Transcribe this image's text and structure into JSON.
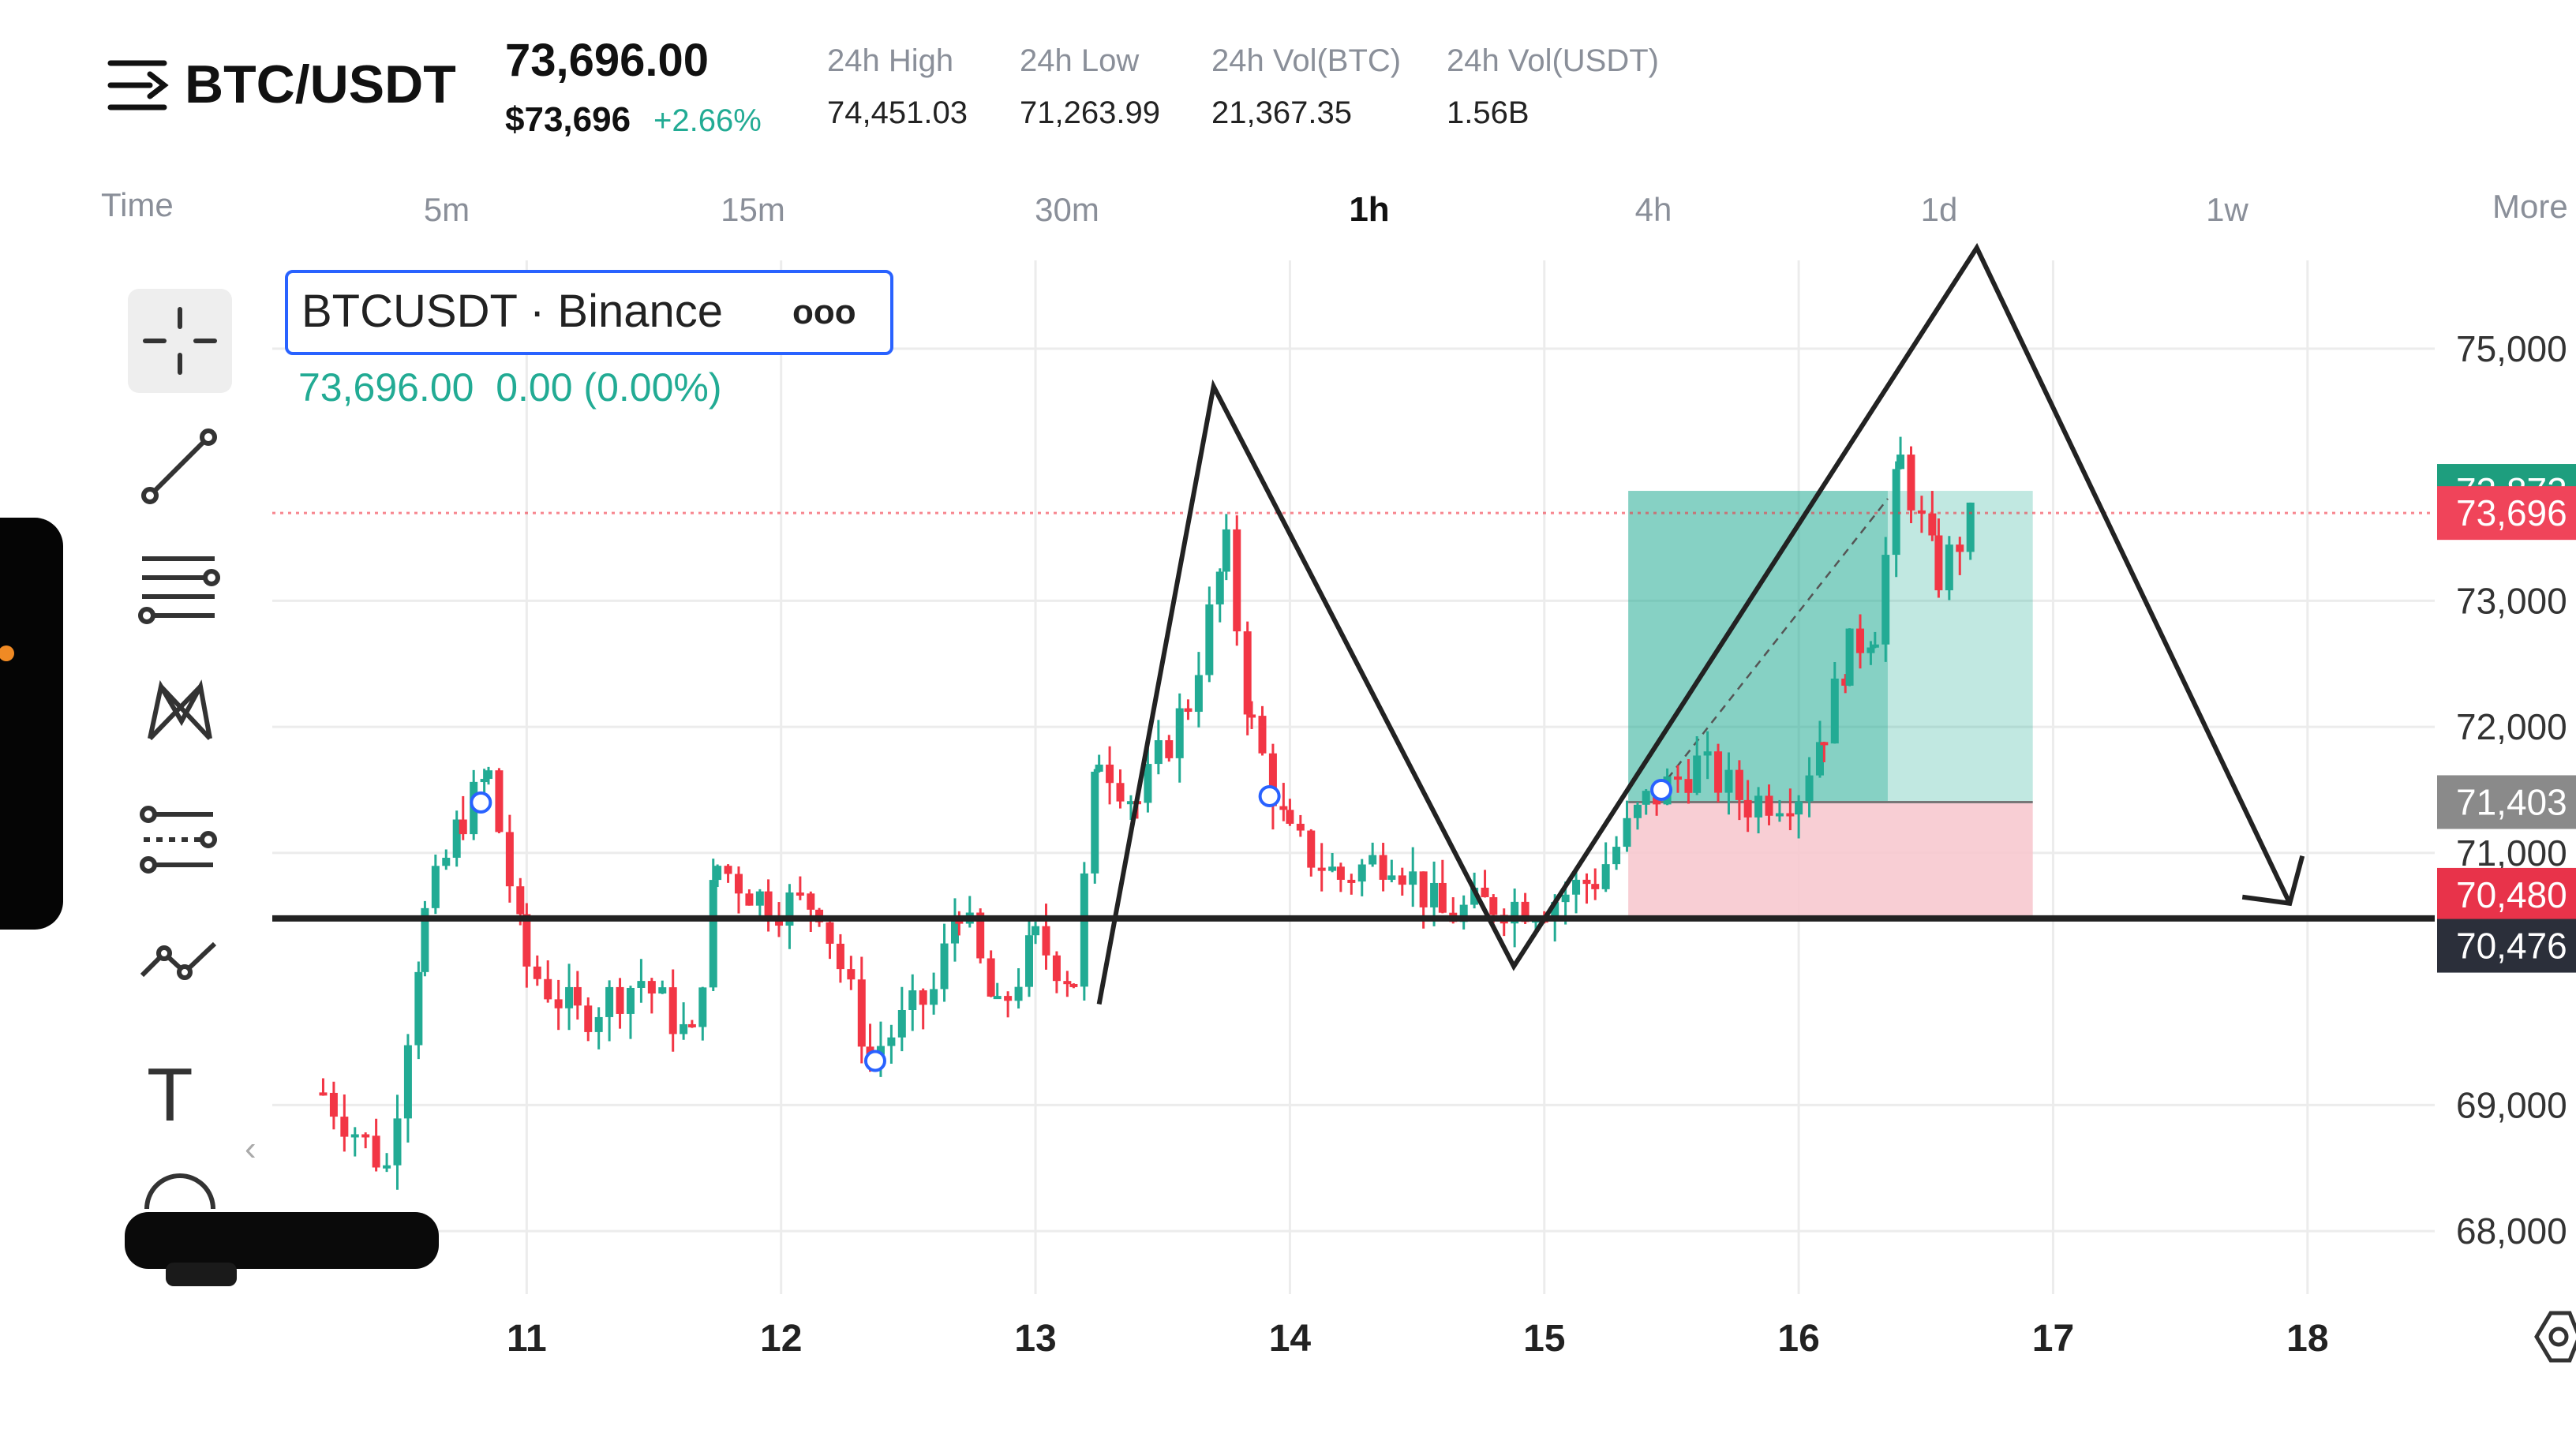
{
  "header": {
    "pair": "BTC/USDT",
    "price": "73,696.00",
    "price_usd": "$73,696",
    "change_pct": "+2.66%",
    "stats": [
      {
        "label": "24h High",
        "value": "74,451.03"
      },
      {
        "label": "24h Low",
        "value": "71,263.99"
      },
      {
        "label": "24h Vol(BTC)",
        "value": "21,367.35"
      },
      {
        "label": "24h Vol(USDT)",
        "value": "1.56B"
      }
    ]
  },
  "timeframes": {
    "time_label": "Time",
    "items": [
      "5m",
      "15m",
      "30m",
      "1h",
      "4h",
      "1d",
      "1w"
    ],
    "selected": "1h",
    "more_label": "More"
  },
  "legend": {
    "symbol": "BTCUSDT · Binance",
    "menu_glyph": "ooo",
    "values": "73,696.00  0.00 (0.00%)"
  },
  "toolbar": {
    "tools": [
      "crosshair",
      "trend-line",
      "horizontal-lines",
      "pattern",
      "fib-channel",
      "prediction",
      "text",
      "emoji"
    ],
    "text_tool_glyph": "T",
    "collapse_glyph": "‹"
  },
  "colors": {
    "up": "#22ab94",
    "down": "#f23645",
    "drawing": "#222222",
    "legend_border": "#2962ff",
    "target_zone": "#22ab94",
    "stop_zone": "#f7c9cf",
    "axis_text": "#333333"
  },
  "price_tags": [
    {
      "value": "73,872",
      "color": "#1e9e7e"
    },
    {
      "value": "73,696",
      "color": "#f0445a"
    },
    {
      "value": "71,403",
      "color": "#8a8a8a"
    },
    {
      "value": "70,480",
      "color": "#e8334a"
    },
    {
      "value": "70,476",
      "color": "#2b2f3a"
    }
  ],
  "chart_data": {
    "type": "candlestick",
    "x_tick_labels": [
      "11",
      "12",
      "13",
      "14",
      "15",
      "16",
      "17",
      "18"
    ],
    "y_tick_labels": [
      "75,000",
      "73,000",
      "72,000",
      "71,000",
      "69,000",
      "68,000"
    ],
    "y_tick_values": [
      75000,
      73000,
      72000,
      71000,
      69000,
      68000
    ],
    "x_range": [
      10.0,
      18.5
    ],
    "y_range": [
      67500,
      75700
    ],
    "current_price": 73696,
    "support_level": 70480,
    "position": {
      "entry": 71403,
      "target": 73872,
      "stop": 70476,
      "start_day": 15.33,
      "end_day": 16.92
    },
    "drawn_pattern": {
      "points": [
        [
          13.25,
          69800
        ],
        [
          13.7,
          74700
        ],
        [
          14.88,
          70100
        ],
        [
          16.7,
          75800
        ],
        [
          17.93,
          70600
        ]
      ]
    },
    "markers": [
      {
        "day": 10.82,
        "price": 71400
      },
      {
        "day": 12.37,
        "price": 69350
      },
      {
        "day": 13.92,
        "price": 71450
      },
      {
        "day": 15.46,
        "price": 71500
      }
    ],
    "candle_path": [
      [
        10.2,
        69100
      ],
      [
        10.45,
        68500
      ],
      [
        10.6,
        70500
      ],
      [
        10.75,
        71300
      ],
      [
        10.85,
        71600
      ],
      [
        11.0,
        70100
      ],
      [
        11.2,
        69700
      ],
      [
        11.45,
        70000
      ],
      [
        11.65,
        69500
      ],
      [
        11.75,
        70900
      ],
      [
        11.95,
        70600
      ],
      [
        12.15,
        70600
      ],
      [
        12.35,
        69400
      ],
      [
        12.6,
        69900
      ],
      [
        12.7,
        70600
      ],
      [
        12.85,
        69700
      ],
      [
        13.0,
        70300
      ],
      [
        13.15,
        70000
      ],
      [
        13.25,
        71800
      ],
      [
        13.4,
        71400
      ],
      [
        13.6,
        72200
      ],
      [
        13.75,
        73400
      ],
      [
        13.85,
        72000
      ],
      [
        14.0,
        71100
      ],
      [
        14.2,
        70800
      ],
      [
        14.4,
        71000
      ],
      [
        14.6,
        70500
      ],
      [
        14.8,
        70600
      ],
      [
        15.0,
        70600
      ],
      [
        15.2,
        70800
      ],
      [
        15.4,
        71400
      ],
      [
        15.6,
        71700
      ],
      [
        15.8,
        71400
      ],
      [
        16.0,
        71500
      ],
      [
        16.1,
        72000
      ],
      [
        16.2,
        72600
      ],
      [
        16.3,
        72800
      ],
      [
        16.4,
        74100
      ],
      [
        16.55,
        73200
      ],
      [
        16.7,
        73700
      ]
    ]
  }
}
